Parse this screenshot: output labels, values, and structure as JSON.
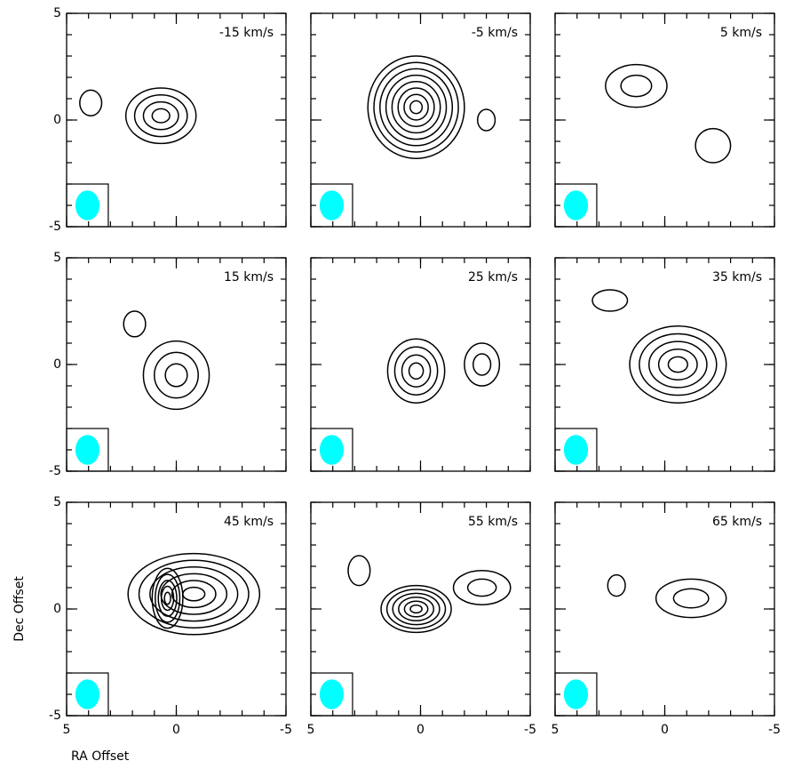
{
  "chart_data": [
    {
      "type": "contour",
      "title": "-15 km/s",
      "xlim": [
        5,
        -5
      ],
      "ylim": [
        -5,
        5
      ],
      "xticks": [
        5,
        0,
        -5
      ],
      "yticks": [
        -5,
        0,
        5
      ],
      "beam_color": "#00ffff",
      "sources": [
        {
          "x": 0.7,
          "y": 0.2,
          "rx": 1.6,
          "ry": 1.3,
          "levels": 4
        },
        {
          "x": 3.9,
          "y": 0.8,
          "rx": 0.5,
          "ry": 0.6,
          "levels": 1
        }
      ]
    },
    {
      "type": "contour",
      "title": "-5 km/s",
      "xlim": [
        5,
        -5
      ],
      "ylim": [
        -5,
        5
      ],
      "xticks": [
        5,
        0,
        -5
      ],
      "yticks": [
        -5,
        0,
        5
      ],
      "beam_color": "#00ffff",
      "sources": [
        {
          "x": 0.2,
          "y": 0.6,
          "rx": 2.2,
          "ry": 2.4,
          "levels": 8
        },
        {
          "x": -3,
          "y": 0,
          "rx": 0.4,
          "ry": 0.5,
          "levels": 1
        }
      ]
    },
    {
      "type": "contour",
      "title": "5 km/s",
      "xlim": [
        5,
        -5
      ],
      "ylim": [
        -5,
        5
      ],
      "xticks": [
        5,
        0,
        -5
      ],
      "yticks": [
        -5,
        0,
        5
      ],
      "beam_color": "#00ffff",
      "sources": [
        {
          "x": 1.3,
          "y": 1.6,
          "rx": 1.4,
          "ry": 1.0,
          "levels": 2
        },
        {
          "x": -2.2,
          "y": -1.2,
          "rx": 0.8,
          "ry": 0.8,
          "levels": 1
        }
      ]
    },
    {
      "type": "contour",
      "title": "15 km/s",
      "xlim": [
        5,
        -5
      ],
      "ylim": [
        -5,
        5
      ],
      "xticks": [
        5,
        0,
        -5
      ],
      "yticks": [
        -5,
        0,
        5
      ],
      "beam_color": "#00ffff",
      "sources": [
        {
          "x": 0,
          "y": -0.5,
          "rx": 1.5,
          "ry": 1.6,
          "levels": 3
        },
        {
          "x": 1.9,
          "y": 1.9,
          "rx": 0.5,
          "ry": 0.6,
          "levels": 1
        }
      ]
    },
    {
      "type": "contour",
      "title": "25 km/s",
      "xlim": [
        5,
        -5
      ],
      "ylim": [
        -5,
        5
      ],
      "xticks": [
        5,
        0,
        -5
      ],
      "yticks": [
        -5,
        0,
        5
      ],
      "beam_color": "#00ffff",
      "sources": [
        {
          "x": 0.2,
          "y": -0.3,
          "rx": 1.3,
          "ry": 1.5,
          "levels": 4
        },
        {
          "x": -2.8,
          "y": 0,
          "rx": 0.8,
          "ry": 1.0,
          "levels": 2
        }
      ]
    },
    {
      "type": "contour",
      "title": "35 km/s",
      "xlim": [
        5,
        -5
      ],
      "ylim": [
        -5,
        5
      ],
      "xticks": [
        5,
        0,
        -5
      ],
      "yticks": [
        -5,
        0,
        5
      ],
      "beam_color": "#00ffff",
      "sources": [
        {
          "x": -0.6,
          "y": 0,
          "rx": 2.2,
          "ry": 1.8,
          "levels": 5
        },
        {
          "x": 2.5,
          "y": 3,
          "rx": 0.8,
          "ry": 0.5,
          "levels": 1
        }
      ]
    },
    {
      "type": "contour",
      "title": "45 km/s",
      "xlim": [
        5,
        -5
      ],
      "ylim": [
        -5,
        5
      ],
      "xticks": [
        5,
        0,
        -5
      ],
      "yticks": [
        -5,
        0,
        5
      ],
      "beam_color": "#00ffff",
      "xlabel": "RA Offset",
      "ylabel": "Dec Offset",
      "sources": [
        {
          "x": -0.8,
          "y": 0.7,
          "rx": 3.0,
          "ry": 1.9,
          "levels": 6
        },
        {
          "x": 0.4,
          "y": 0.5,
          "rx": 0.7,
          "ry": 1.4,
          "levels": 5
        }
      ]
    },
    {
      "type": "contour",
      "title": "55 km/s",
      "xlim": [
        5,
        -5
      ],
      "ylim": [
        -5,
        5
      ],
      "xticks": [
        5,
        0,
        -5
      ],
      "yticks": [
        -5,
        0,
        5
      ],
      "beam_color": "#00ffff",
      "sources": [
        {
          "x": 0.2,
          "y": 0,
          "rx": 1.6,
          "ry": 1.1,
          "levels": 6
        },
        {
          "x": -2.8,
          "y": 1,
          "rx": 1.3,
          "ry": 0.8,
          "levels": 2
        },
        {
          "x": 2.8,
          "y": 1.8,
          "rx": 0.5,
          "ry": 0.7,
          "levels": 1
        }
      ]
    },
    {
      "type": "contour",
      "title": "65 km/s",
      "xlim": [
        5,
        -5
      ],
      "ylim": [
        -5,
        5
      ],
      "xticks": [
        5,
        0,
        -5
      ],
      "yticks": [
        -5,
        0,
        5
      ],
      "beam_color": "#00ffff",
      "sources": [
        {
          "x": -1.2,
          "y": 0.5,
          "rx": 1.6,
          "ry": 0.9,
          "levels": 2
        },
        {
          "x": 2.2,
          "y": 1.1,
          "rx": 0.4,
          "ry": 0.5,
          "levels": 1
        }
      ]
    }
  ]
}
